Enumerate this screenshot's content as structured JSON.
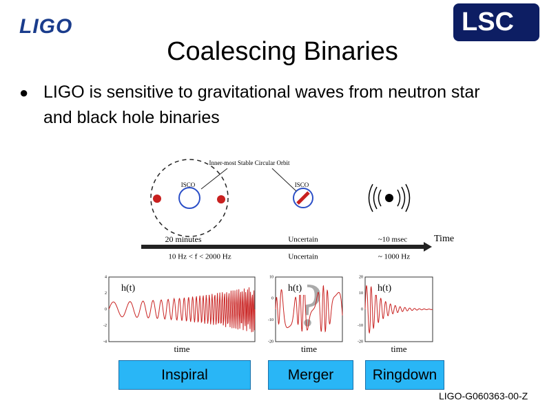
{
  "header": {
    "logo_left": "LIGO",
    "logo_right": "LSC",
    "title": "Coalescing Binaries"
  },
  "bullets": [
    "LIGO is sensitive to gravitational waves from neutron star and black hole binaries"
  ],
  "diagram": {
    "orbit_label": "Inner-most Stable Circular Orbit",
    "isco_labels": [
      "ISCO",
      "ISCO"
    ],
    "axis_label": "Time",
    "phases": [
      {
        "duration": "20 minutes",
        "frequency": "10 Hz < f < 2000 Hz"
      },
      {
        "duration": "Uncertain",
        "frequency": "Uncertain"
      },
      {
        "duration": "~10 msec",
        "frequency": "~ 1000 Hz"
      }
    ]
  },
  "plots": [
    {
      "ylabel": "h(t)",
      "xlabel": "time",
      "yticks": [
        "4",
        "2",
        "0",
        "-2",
        "-4"
      ]
    },
    {
      "ylabel": "h(t)",
      "xlabel": "time",
      "yticks": [
        "10",
        "0",
        "-10",
        "-20"
      ]
    },
    {
      "ylabel": "h(t)",
      "xlabel": "time",
      "yticks": [
        "20",
        "10",
        "0",
        "-10",
        "-20"
      ]
    }
  ],
  "stages": [
    "Inspiral",
    "Merger",
    "Ringdown"
  ],
  "footer": "LIGO-G060363-00-Z"
}
